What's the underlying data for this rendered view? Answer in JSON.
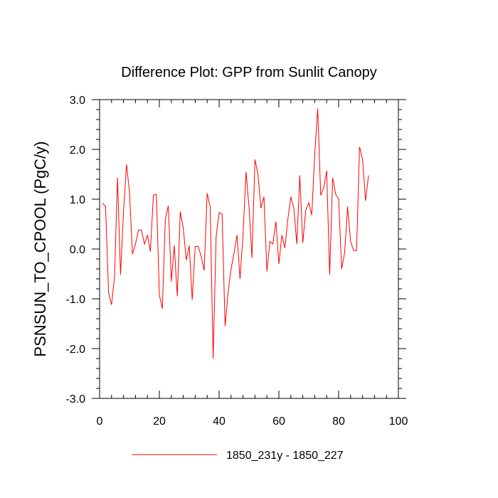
{
  "chart_data": {
    "type": "line",
    "title": "Difference Plot: GPP from Sunlit Canopy",
    "xlabel": "",
    "ylabel": "PSNSUN_TO_CPOOL  (PgC/y)",
    "xlim": [
      0,
      100
    ],
    "ylim": [
      -3.0,
      3.0
    ],
    "x_ticks": [
      0,
      20,
      40,
      60,
      80,
      100
    ],
    "x_tick_labels": [
      "0",
      "20",
      "40",
      "60",
      "80",
      "100"
    ],
    "y_ticks": [
      -3.0,
      -2.0,
      -1.0,
      0.0,
      1.0,
      2.0,
      3.0
    ],
    "y_tick_labels": [
      "-3.0",
      "-2.0",
      "-1.0",
      "0.0",
      "1.0",
      "2.0",
      "3.0"
    ],
    "grid": false,
    "legend_position": "bottom",
    "series": [
      {
        "name": "1850_231y - 1850_227",
        "color": "#ff0000",
        "x": [
          1,
          2,
          3,
          4,
          5,
          6,
          7,
          8,
          9,
          10,
          11,
          12,
          13,
          14,
          15,
          16,
          17,
          18,
          19,
          20,
          21,
          22,
          23,
          24,
          25,
          26,
          27,
          28,
          29,
          30,
          31,
          32,
          33,
          34,
          35,
          36,
          37,
          38,
          39,
          40,
          41,
          42,
          43,
          44,
          45,
          46,
          47,
          48,
          49,
          50,
          51,
          52,
          53,
          54,
          55,
          56,
          57,
          58,
          59,
          60,
          61,
          62,
          63,
          64,
          65,
          66,
          67,
          68,
          69,
          70,
          71,
          72,
          73,
          74,
          75,
          76,
          77,
          78,
          79,
          80,
          81,
          82,
          83,
          84,
          85,
          86,
          87,
          88,
          89,
          90
        ],
        "values": [
          0.92,
          0.85,
          -0.88,
          -1.12,
          -0.55,
          1.43,
          -0.52,
          0.75,
          1.7,
          1.15,
          -0.1,
          0.1,
          0.38,
          0.38,
          0.1,
          0.28,
          -0.05,
          1.08,
          1.1,
          -0.92,
          -1.2,
          0.6,
          0.87,
          -0.65,
          0.07,
          -0.95,
          0.75,
          0.42,
          -0.22,
          0.07,
          -1.02,
          0.05,
          0.05,
          -0.15,
          -0.43,
          1.12,
          0.85,
          -2.2,
          0.25,
          0.73,
          0.7,
          -1.55,
          -0.88,
          -0.4,
          -0.08,
          0.28,
          -0.6,
          0.28,
          1.55,
          0.85,
          -0.18,
          1.8,
          1.5,
          0.82,
          1.05,
          -0.45,
          0.15,
          0.1,
          0.55,
          -0.3,
          0.28,
          0.02,
          0.6,
          1.05,
          0.82,
          0.1,
          1.48,
          0.12,
          0.78,
          0.93,
          0.68,
          1.9,
          2.82,
          1.08,
          1.23,
          1.57,
          -0.52,
          1.43,
          1.1,
          1.0,
          -0.4,
          -0.08,
          0.85,
          0.15,
          -0.03,
          -0.03,
          2.05,
          1.8,
          0.97,
          1.48
        ]
      }
    ]
  }
}
